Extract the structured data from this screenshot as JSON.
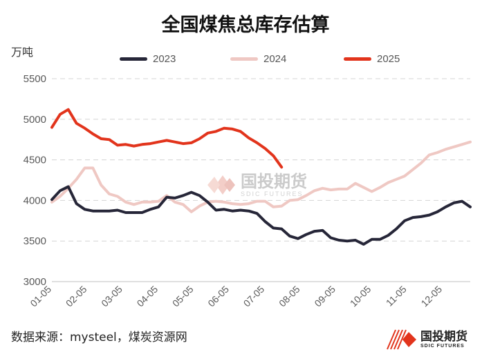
{
  "chart_data": {
    "type": "line",
    "title": "全国煤焦总库存估算",
    "unit_label": "万吨",
    "xlabel": "",
    "ylabel": "",
    "ylim": [
      3000,
      5500
    ],
    "yticks": [
      3000,
      3500,
      4000,
      4500,
      5000,
      5500
    ],
    "x_ticks": [
      "01-05",
      "02-05",
      "03-05",
      "04-05",
      "05-05",
      "06-05",
      "07-05",
      "08-05",
      "09-05",
      "10-05",
      "11-05",
      "12-05"
    ],
    "x_range": [
      1,
      52
    ],
    "grid": "horizontal dashed",
    "legend_position": "top",
    "series": [
      {
        "name": "2023",
        "color": "#262638",
        "x": [
          1,
          2,
          3,
          4,
          5,
          6,
          7,
          8,
          9,
          10,
          11,
          12,
          13,
          14,
          15,
          16,
          17,
          18,
          19,
          20,
          21,
          22,
          23,
          24,
          25,
          26,
          27,
          28,
          29,
          30,
          31,
          32,
          33,
          34,
          35,
          36,
          37,
          38,
          39,
          40,
          41,
          42,
          43,
          44,
          45,
          46,
          47,
          48,
          49,
          50,
          51,
          52
        ],
        "values": [
          4010,
          4120,
          4170,
          3960,
          3890,
          3870,
          3870,
          3870,
          3880,
          3850,
          3850,
          3850,
          3890,
          3920,
          4040,
          4030,
          4060,
          4100,
          4060,
          3980,
          3880,
          3890,
          3870,
          3880,
          3870,
          3840,
          3740,
          3660,
          3650,
          3560,
          3530,
          3580,
          3620,
          3630,
          3540,
          3510,
          3500,
          3510,
          3460,
          3520,
          3520,
          3570,
          3650,
          3750,
          3790,
          3800,
          3820,
          3860,
          3920,
          3970,
          3990,
          3920
        ]
      },
      {
        "name": "2024",
        "color": "#efc8c3",
        "x": [
          1,
          2,
          3,
          4,
          5,
          6,
          7,
          8,
          9,
          10,
          11,
          12,
          13,
          14,
          15,
          16,
          17,
          18,
          19,
          20,
          21,
          22,
          23,
          24,
          25,
          26,
          27,
          28,
          29,
          30,
          31,
          32,
          33,
          34,
          35,
          36,
          37,
          38,
          39,
          40,
          41,
          42,
          43,
          44,
          45,
          46,
          47,
          48,
          49,
          50,
          51,
          52
        ],
        "values": [
          3980,
          4050,
          4150,
          4260,
          4400,
          4400,
          4190,
          4080,
          4050,
          3980,
          3950,
          3980,
          3980,
          3990,
          4060,
          3980,
          3950,
          3860,
          3930,
          3980,
          3990,
          3980,
          3960,
          3950,
          3960,
          3990,
          3990,
          3920,
          3930,
          4000,
          4010,
          4060,
          4120,
          4150,
          4130,
          4140,
          4140,
          4210,
          4160,
          4110,
          4160,
          4220,
          4260,
          4300,
          4380,
          4460,
          4560,
          4590,
          4630,
          4660,
          4690,
          4720
        ]
      },
      {
        "name": "2025",
        "color": "#e2341c",
        "x": [
          1,
          2,
          3,
          4,
          5,
          6,
          7,
          8,
          9,
          10,
          11,
          12,
          13,
          14,
          15,
          16,
          17,
          18,
          19,
          20,
          21,
          22,
          23,
          24,
          25,
          26,
          27,
          28,
          29
        ],
        "values": [
          4900,
          5060,
          5120,
          4950,
          4890,
          4820,
          4760,
          4750,
          4680,
          4690,
          4670,
          4690,
          4700,
          4720,
          4740,
          4720,
          4700,
          4710,
          4760,
          4830,
          4850,
          4890,
          4880,
          4850,
          4770,
          4710,
          4640,
          4550,
          4410
        ]
      }
    ]
  },
  "footer": {
    "source": "数据来源：mysteel，煤炭资源网",
    "logo_cn": "国投期货",
    "logo_en": "SDIC FUTURES"
  },
  "watermark": {
    "cn": "国投期货",
    "en": "SDIC FUTURES"
  },
  "colors": {
    "grid": "#d4d4d4",
    "axis": "#bfbfbf",
    "text": "#595959",
    "brand": "#e2341c"
  },
  "icons": {
    "logo": "sdic-stripes-logo-icon",
    "watermark": "sdic-diamond-watermark-icon"
  }
}
